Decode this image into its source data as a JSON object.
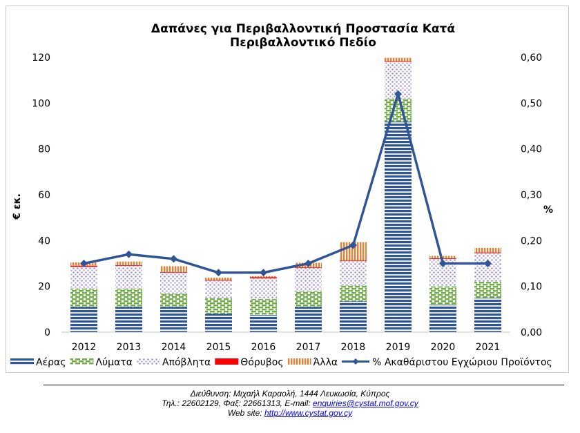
{
  "chart_data": {
    "type": "bar",
    "title_line1": "Δαπάνες για Περιβαλλοντική Προστασία Κατά",
    "title_line2": "Περιβαλλοντικό Πεδίο",
    "ylabel": "€ εκ.",
    "y2label": "%",
    "ylim": [
      0,
      120
    ],
    "y2lim": [
      0,
      0.6
    ],
    "y_ticks": [
      "0",
      "20",
      "40",
      "60",
      "80",
      "100",
      "120"
    ],
    "y2_ticks": [
      "0,00",
      "0,10",
      "0,20",
      "0,30",
      "0,40",
      "0,50",
      "0,60"
    ],
    "categories": [
      "2012",
      "2013",
      "2014",
      "2015",
      "2016",
      "2017",
      "2018",
      "2019",
      "2020",
      "2021"
    ],
    "stacked": true,
    "series": [
      {
        "name": "Αέρας",
        "color": "#2f5597",
        "pattern": "horizontal-stripes",
        "values": [
          11,
          11,
          11,
          8,
          7.5,
          11,
          13.5,
          92,
          12,
          15
        ]
      },
      {
        "name": "Λύματα",
        "color": "#70ad47",
        "pattern": "dashed-bricks",
        "values": [
          8,
          8,
          6,
          7,
          7,
          7,
          7,
          10,
          8,
          7
        ]
      },
      {
        "name": "Απόβλητα",
        "color": "#b4a7d6",
        "pattern": "dots",
        "values": [
          9.5,
          10,
          9,
          7.5,
          9,
          10,
          10.5,
          16,
          12,
          12.5
        ]
      },
      {
        "name": "Θόρυβος",
        "color": "#ff0000",
        "pattern": "solid",
        "values": [
          0.5,
          0.3,
          0.3,
          0.3,
          0.5,
          0.3,
          0.3,
          0.3,
          0.3,
          0.3
        ]
      },
      {
        "name": "Άλλα",
        "color": "#ed7d31",
        "pattern": "vertical-stripes",
        "values": [
          1.5,
          1.5,
          2.5,
          1,
          0.5,
          2,
          8,
          1.5,
          1,
          2
        ]
      }
    ],
    "line_series": {
      "name": "% Ακαθάριστου Εγχώριου Προϊόντος",
      "color": "#2f5597",
      "axis": "secondary",
      "values": [
        0.15,
        0.17,
        0.16,
        0.13,
        0.13,
        0.15,
        0.19,
        0.52,
        0.15,
        0.15
      ]
    },
    "legend_position": "bottom",
    "grid": false
  },
  "footer": {
    "line1": "Διεύθυνση: Μιχαήλ Καραολή, 1444 Λευκωσία, Κύπρος",
    "line2_prefix": "Τηλ.:  22602129, Φαξ:  22661313, E-mail: ",
    "email": "enquiries@cystat.mof.gov.cy",
    "line3_prefix": "Web site: ",
    "website": "http://www.cystat.gov.cy"
  }
}
